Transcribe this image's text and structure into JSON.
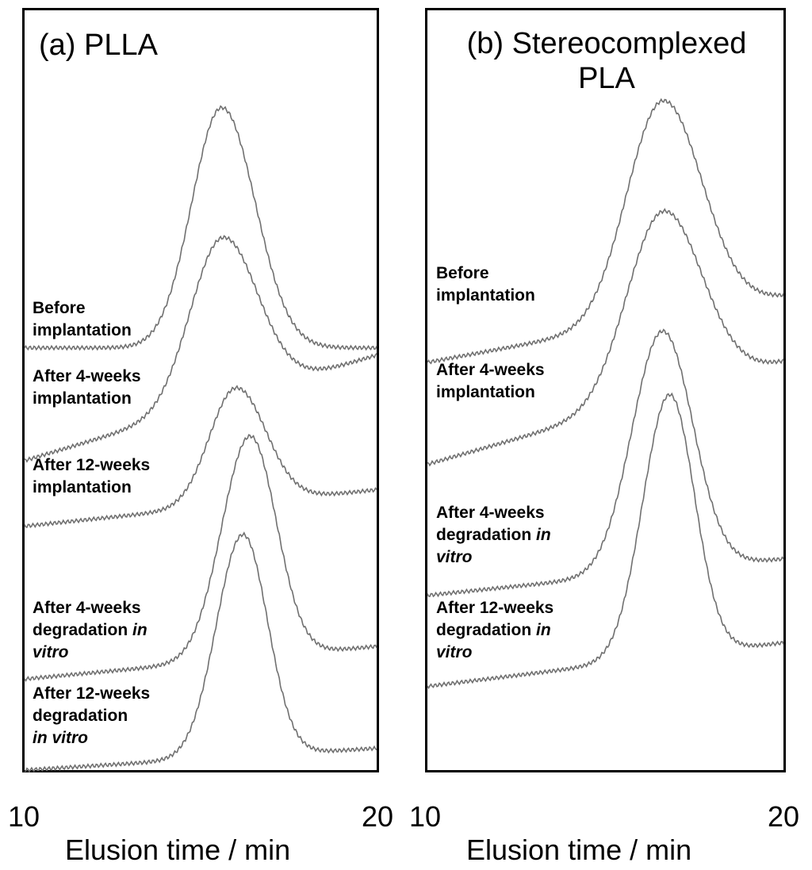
{
  "chart_data": [
    {
      "type": "line",
      "panel": "a",
      "title": "(a) PLLA",
      "xlabel": "Elusion time / min",
      "xlim": [
        10,
        20
      ],
      "x_ticks": [
        "10",
        "20"
      ],
      "y_axis": "none",
      "series": [
        {
          "name": "Before implantation",
          "label_lines": [
            "Before",
            "implantation"
          ],
          "italic_last": false,
          "peak_x": 15.6,
          "sigma_left": 0.85,
          "sigma_right": 0.95,
          "peak_height": 0.33,
          "base_start": 0.58,
          "base_end": 0.58
        },
        {
          "name": "After 4-weeks implantation",
          "label_lines": [
            "After 4-weeks",
            "implantation"
          ],
          "italic_last": false,
          "peak_x": 15.6,
          "sigma_left": 0.9,
          "sigma_right": 1.0,
          "peak_height": 0.225,
          "base_start": 0.425,
          "base_end": 0.57
        },
        {
          "name": "After 12-weeks implantation",
          "label_lines": [
            "After 12-weeks",
            "implantation"
          ],
          "italic_last": false,
          "peak_x": 16.0,
          "sigma_left": 0.75,
          "sigma_right": 0.85,
          "peak_height": 0.16,
          "base_start": 0.335,
          "base_end": 0.385
        },
        {
          "name": "After 4-weeks degradation in vitro",
          "label_lines": [
            "After 4-weeks",
            "degradation ",
            "in",
            "vitro"
          ],
          "italic_last": true,
          "peak_x": 16.4,
          "sigma_left": 0.8,
          "sigma_right": 0.75,
          "peak_height": 0.305,
          "base_start": 0.125,
          "base_end": 0.17
        },
        {
          "name": "After 12-weeks degradation in vitro",
          "label_lines": [
            "After 12-weeks",
            "degradation",
            "",
            "in vitro"
          ],
          "italic_last": true,
          "peak_x": 16.2,
          "sigma_left": 0.75,
          "sigma_right": 0.7,
          "peak_height": 0.305,
          "base_start": 0.0,
          "base_end": 0.03
        }
      ]
    },
    {
      "type": "line",
      "panel": "b",
      "title": "(b) Stereocomplexed PLA",
      "xlabel": "Elusion time / min",
      "xlim": [
        10,
        20
      ],
      "x_ticks": [
        "10",
        "20"
      ],
      "y_axis": "none",
      "series": [
        {
          "name": "Before implantation",
          "label_lines": [
            "Before",
            "implantation"
          ],
          "italic_last": false,
          "peak_x": 16.6,
          "sigma_left": 1.0,
          "sigma_right": 1.1,
          "peak_height": 0.3,
          "base_start": 0.56,
          "base_end": 0.65
        },
        {
          "name": "After 4-weeks implantation",
          "label_lines": [
            "After 4-weeks",
            "implantation"
          ],
          "italic_last": false,
          "peak_x": 16.6,
          "sigma_left": 1.0,
          "sigma_right": 1.1,
          "peak_height": 0.255,
          "base_start": 0.42,
          "base_end": 0.56
        },
        {
          "name": "After 4-weeks degradation in vitro",
          "label_lines": [
            "After 4-weeks",
            "degradation ",
            "in",
            "vitro"
          ],
          "italic_last": true,
          "peak_x": 16.6,
          "sigma_left": 0.85,
          "sigma_right": 0.85,
          "peak_height": 0.33,
          "base_start": 0.24,
          "base_end": 0.29
        },
        {
          "name": "After 12-weeks degradation in vitro",
          "label_lines": [
            "After 12-weeks",
            "degradation ",
            "in",
            "vitro"
          ],
          "italic_last": true,
          "peak_x": 16.8,
          "sigma_left": 0.75,
          "sigma_right": 0.7,
          "peak_height": 0.36,
          "base_start": 0.115,
          "base_end": 0.175
        }
      ]
    }
  ]
}
